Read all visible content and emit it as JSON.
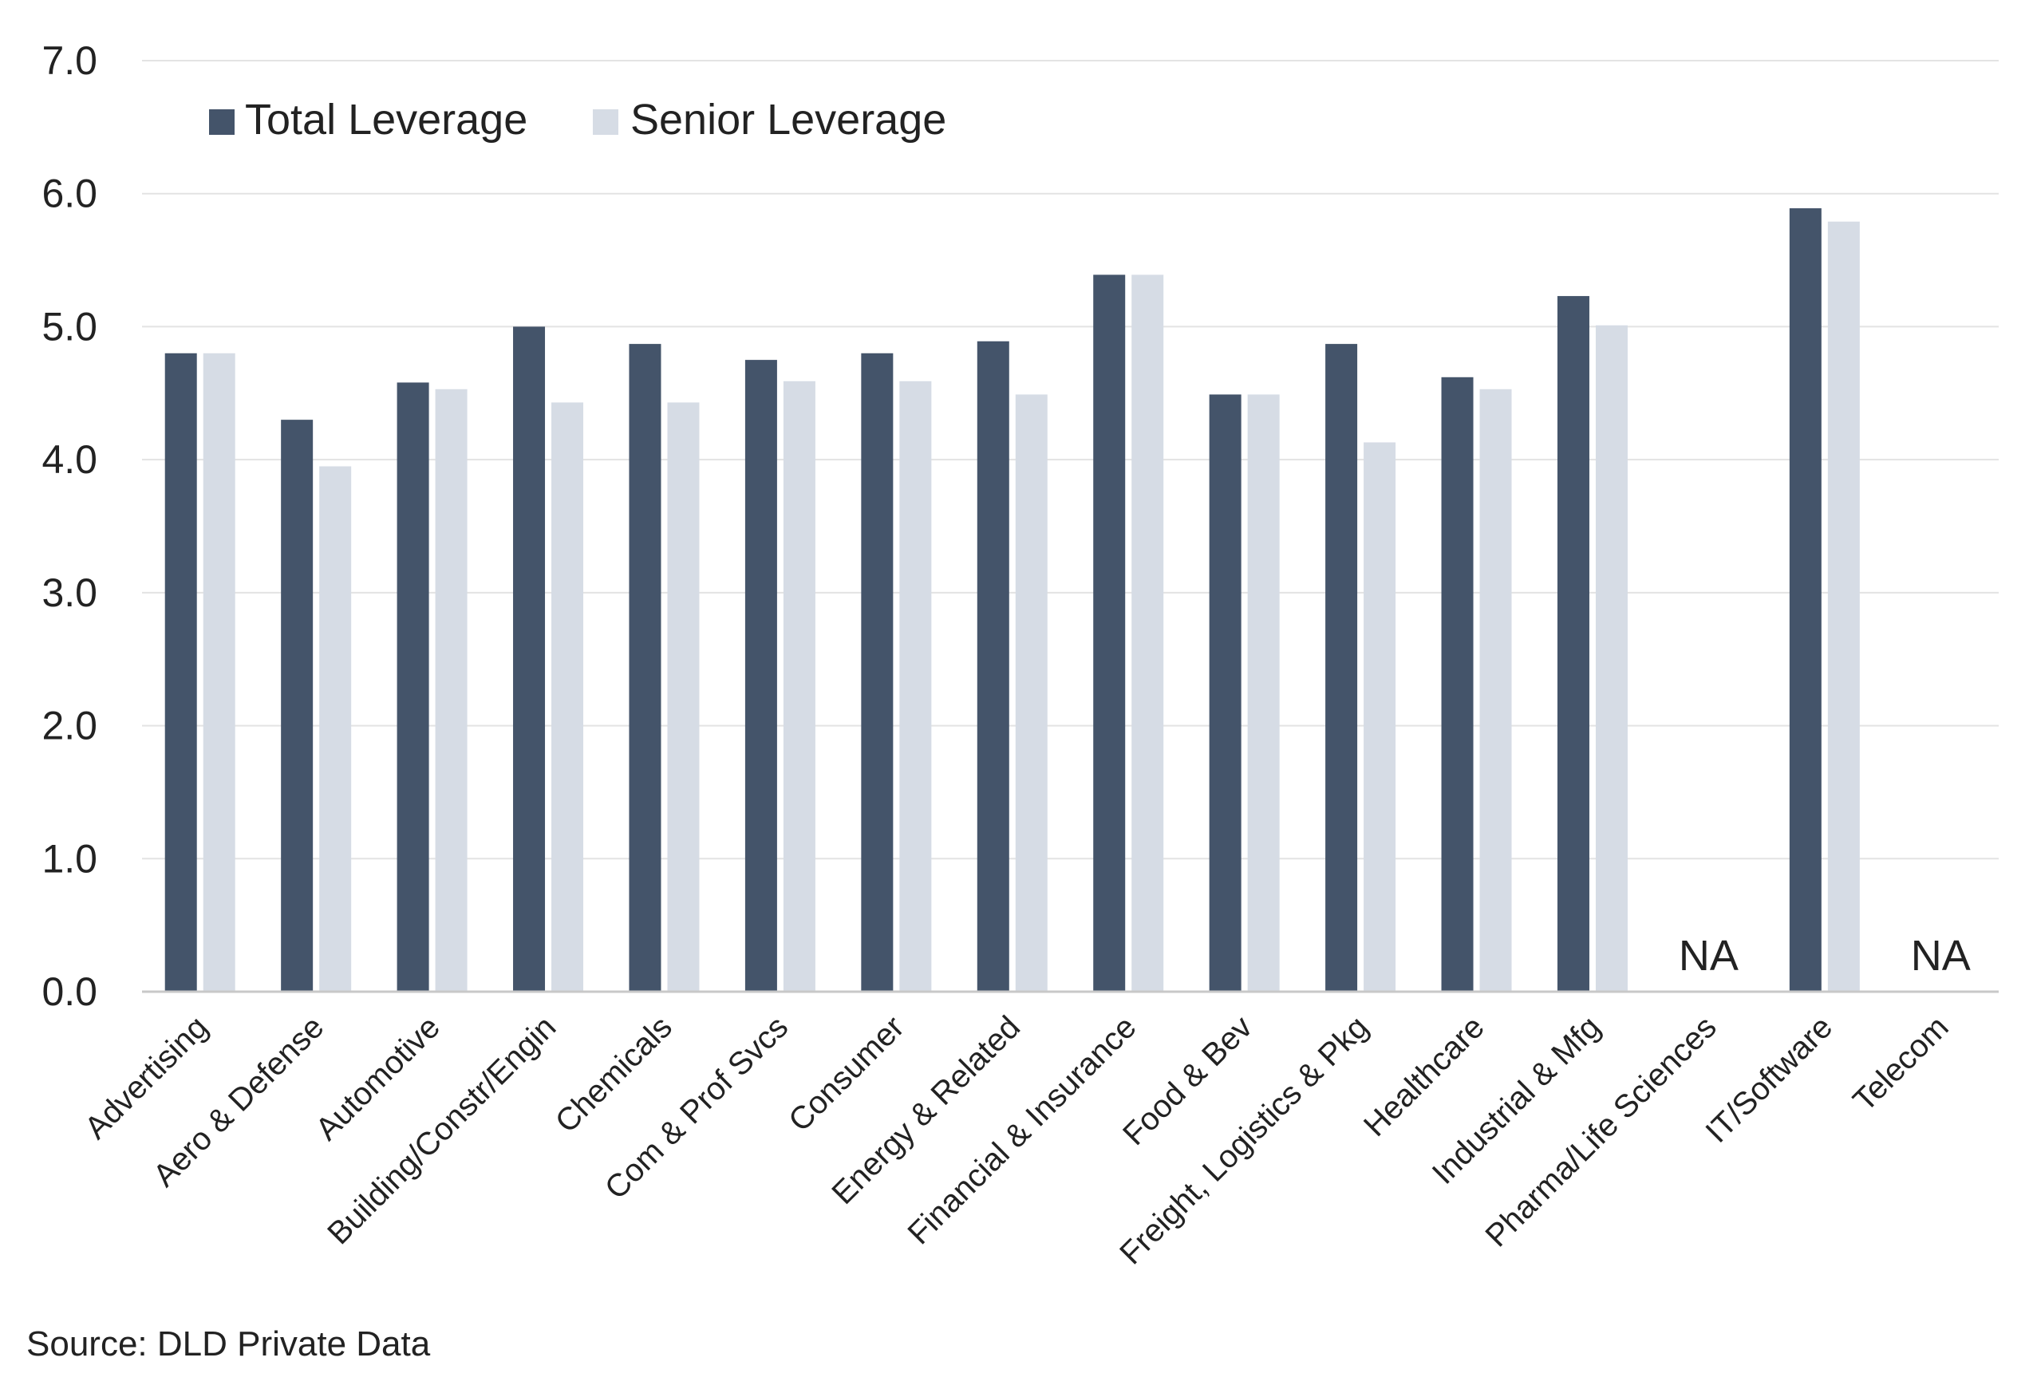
{
  "colors": {
    "total_leverage": "#44546A",
    "senior_leverage": "#D6DCE5",
    "grid": "#E3E3E3",
    "axis": "#C8C8C8",
    "text": "#222222"
  },
  "chart_data": {
    "type": "bar",
    "title": "",
    "xlabel": "",
    "ylabel": "",
    "ylim": [
      0,
      7
    ],
    "y_ticks": [
      "0.0",
      "1.0",
      "2.0",
      "3.0",
      "4.0",
      "5.0",
      "6.0",
      "7.0"
    ],
    "y_tick_values": [
      0,
      1,
      2,
      3,
      4,
      5,
      6,
      7
    ],
    "grid": true,
    "legend_position": "top-left",
    "categories": [
      "Advertising",
      "Aero & Defense",
      "Automotive",
      "Building/Constr/Engin",
      "Chemicals",
      "Com & Prof Svcs",
      "Consumer",
      "Energy & Related",
      "Financial & Insurance",
      "Food & Bev",
      "Freight, Logistics & Pkg",
      "Healthcare",
      "Industrial & Mfg",
      "Pharma/Life Sciences",
      "IT/Software",
      "Telecom"
    ],
    "series": [
      {
        "name": "Total Leverage",
        "color": "#44546A",
        "values": [
          4.8,
          4.3,
          4.58,
          5.0,
          4.87,
          4.75,
          4.8,
          4.89,
          5.39,
          4.49,
          4.87,
          4.62,
          5.23,
          null,
          5.89,
          null
        ]
      },
      {
        "name": "Senior Leverage",
        "color": "#D6DCE5",
        "values": [
          4.8,
          3.95,
          4.53,
          4.43,
          4.43,
          4.59,
          4.59,
          4.49,
          5.39,
          4.49,
          4.13,
          4.53,
          5.01,
          null,
          5.79,
          null
        ]
      }
    ],
    "annotations": [
      {
        "category": "Pharma/Life Sciences",
        "text": "NA"
      },
      {
        "category": "Telecom",
        "text": "NA"
      }
    ],
    "source": "Source: DLD Private Data"
  }
}
